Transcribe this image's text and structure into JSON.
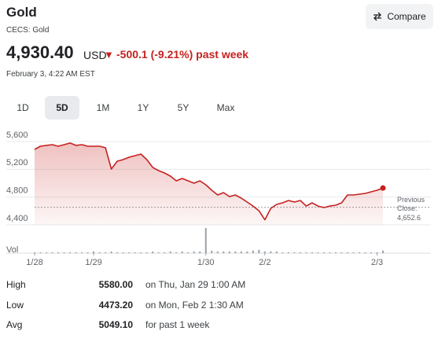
{
  "header": {
    "title": "Gold",
    "subtitle": "CECS: Gold",
    "price": "4,930.40",
    "currency": "USD",
    "change": "-500.1 (-9.21%) past week",
    "timestamp": "February 3, 4:22 AM EST",
    "compare": "Compare"
  },
  "tabs": [
    {
      "label": "1D",
      "active": false
    },
    {
      "label": "5D",
      "active": true
    },
    {
      "label": "1M",
      "active": false
    },
    {
      "label": "1Y",
      "active": false
    },
    {
      "label": "5Y",
      "active": false
    },
    {
      "label": "Max",
      "active": false
    }
  ],
  "chart_data": {
    "type": "line",
    "series": [
      {
        "name": "Gold",
        "color": "#c5221f",
        "values": [
          5487,
          5532,
          5544,
          5555,
          5532,
          5555,
          5578,
          5544,
          5555,
          5532,
          5532,
          5532,
          5510,
          5204,
          5317,
          5340,
          5374,
          5396,
          5419,
          5340,
          5227,
          5181,
          5147,
          5102,
          5034,
          5068,
          5034,
          5000,
          5034,
          4977,
          4898,
          4830,
          4864,
          4807,
          4830,
          4785,
          4728,
          4671,
          4603,
          4473,
          4637,
          4694,
          4717,
          4751,
          4728,
          4751,
          4671,
          4717,
          4671,
          4649,
          4671,
          4683,
          4717,
          4830,
          4830,
          4841,
          4853,
          4875,
          4898,
          4930
        ]
      }
    ],
    "volume": [
      1,
      1,
      1,
      1,
      1,
      1,
      1,
      1,
      1,
      1,
      2,
      1,
      1,
      2,
      1,
      1,
      1,
      1,
      1,
      1,
      2,
      1,
      1,
      2,
      1,
      2,
      1,
      2,
      2,
      30,
      3,
      2,
      2,
      2,
      2,
      2,
      2,
      3,
      4,
      2,
      2,
      2,
      1,
      1,
      1,
      1,
      1,
      1,
      1,
      1,
      1,
      1,
      1,
      1,
      1,
      1,
      1,
      1,
      1,
      3
    ],
    "volume_label": "Vol",
    "xlim": [
      0,
      59
    ],
    "xticks": [
      {
        "value": 0,
        "label": "1/28"
      },
      {
        "value": 10,
        "label": "1/29"
      },
      {
        "value": 29,
        "label": "1/30"
      },
      {
        "value": 39,
        "label": "2/2"
      },
      {
        "value": 58,
        "label": "2/3"
      }
    ],
    "ylim": [
      4400,
      5600
    ],
    "yticks": [
      {
        "value": 5600,
        "label": "5,600"
      },
      {
        "value": 5200,
        "label": "5,200"
      },
      {
        "value": 4800,
        "label": "4,800"
      },
      {
        "value": 4400,
        "label": "4,400"
      }
    ],
    "grid": true,
    "previous_close": {
      "value": 4652.6,
      "label": "4,652.6"
    },
    "previous_close_label": "Previous Close:"
  },
  "stats": [
    {
      "label": "High",
      "value": "5580.00",
      "note": "on Thu, Jan 29 1:00 AM"
    },
    {
      "label": "Low",
      "value": "4473.20",
      "note": "on Mon, Feb 2 1:30 AM"
    },
    {
      "label": "Avg",
      "value": "5049.10",
      "note": "for past 1 week"
    }
  ]
}
